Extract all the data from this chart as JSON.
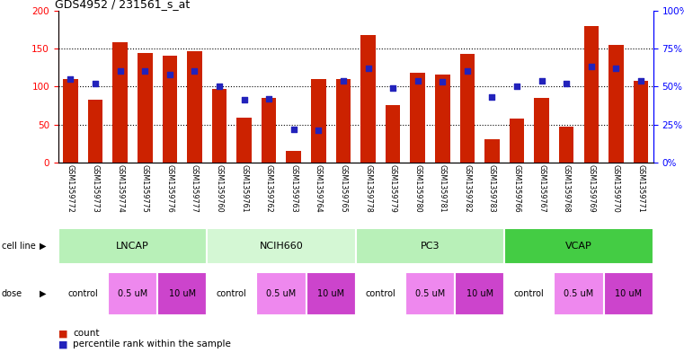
{
  "title": "GDS4952 / 231561_s_at",
  "samples": [
    "GSM1359772",
    "GSM1359773",
    "GSM1359774",
    "GSM1359775",
    "GSM1359776",
    "GSM1359777",
    "GSM1359760",
    "GSM1359761",
    "GSM1359762",
    "GSM1359763",
    "GSM1359764",
    "GSM1359765",
    "GSM1359778",
    "GSM1359779",
    "GSM1359780",
    "GSM1359781",
    "GSM1359782",
    "GSM1359783",
    "GSM1359766",
    "GSM1359767",
    "GSM1359768",
    "GSM1359769",
    "GSM1359770",
    "GSM1359771"
  ],
  "counts": [
    110,
    83,
    158,
    144,
    140,
    147,
    97,
    59,
    85,
    15,
    110,
    110,
    168,
    75,
    118,
    116,
    143,
    30,
    58,
    85,
    47,
    180,
    155,
    108
  ],
  "percentile_ranks": [
    55,
    52,
    60,
    60,
    58,
    60,
    50,
    41,
    42,
    22,
    21,
    54,
    62,
    49,
    54,
    53,
    60,
    43,
    50,
    54,
    52,
    63,
    62,
    54
  ],
  "cell_lines": [
    {
      "name": "LNCAP",
      "start": 0,
      "end": 6,
      "color": "#b8f0b8"
    },
    {
      "name": "NCIH660",
      "start": 6,
      "end": 12,
      "color": "#d4f7d4"
    },
    {
      "name": "PC3",
      "start": 12,
      "end": 18,
      "color": "#b8f0b8"
    },
    {
      "name": "VCAP",
      "start": 18,
      "end": 24,
      "color": "#44cc44"
    }
  ],
  "doses": [
    {
      "name": "control",
      "start": 0,
      "end": 2
    },
    {
      "name": "0.5 uM",
      "start": 2,
      "end": 4
    },
    {
      "name": "10 uM",
      "start": 4,
      "end": 6
    },
    {
      "name": "control",
      "start": 6,
      "end": 8
    },
    {
      "name": "0.5 uM",
      "start": 8,
      "end": 10
    },
    {
      "name": "10 uM",
      "start": 10,
      "end": 12
    },
    {
      "name": "control",
      "start": 12,
      "end": 14
    },
    {
      "name": "0.5 uM",
      "start": 14,
      "end": 16
    },
    {
      "name": "10 uM",
      "start": 16,
      "end": 18
    },
    {
      "name": "control",
      "start": 18,
      "end": 20
    },
    {
      "name": "0.5 uM",
      "start": 20,
      "end": 22
    },
    {
      "name": "10 uM",
      "start": 22,
      "end": 24
    }
  ],
  "dose_colors": {
    "control": "#ffffff",
    "0.5 uM": "#ee88ee",
    "10 uM": "#cc44cc"
  },
  "bar_color": "#cc2200",
  "dot_color": "#2222bb",
  "ylim_left": [
    0,
    200
  ],
  "ylim_right": [
    0,
    100
  ],
  "yticks_left": [
    0,
    50,
    100,
    150,
    200
  ],
  "yticks_right": [
    0,
    25,
    50,
    75,
    100
  ],
  "ytick_labels_right": [
    "0%",
    "25%",
    "50%",
    "75%",
    "100%"
  ],
  "tick_area_color": "#d8d8d8"
}
